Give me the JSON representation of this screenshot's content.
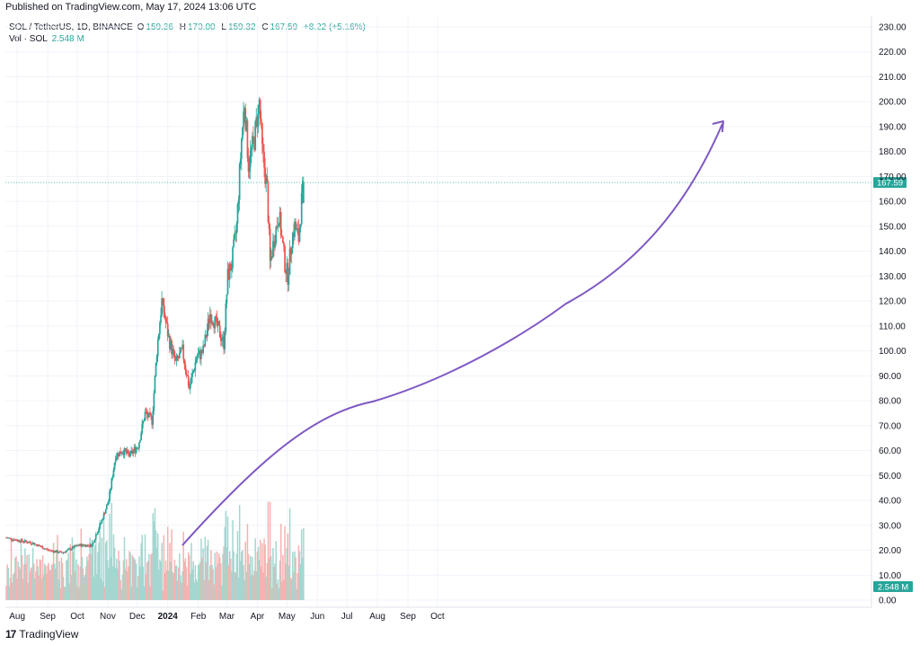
{
  "published": "Published on TradingView.com, May 17, 2024 13:06 UTC",
  "legend": {
    "symbol": "SOL / TetherUS, 1D, BINANCE",
    "o_label": "O",
    "o_value": "159.36",
    "h_label": "H",
    "h_value": "170.00",
    "l_label": "L",
    "l_value": "159.32",
    "c_label": "C",
    "c_value": "167.59",
    "change": "+8.22 (+5.16%)",
    "vol_label": "Vol · SOL",
    "vol_value": "2.548 M"
  },
  "brand": "TradingView",
  "colors": {
    "up": "#26a69a",
    "down": "#ef5350",
    "vol_up": "#a5d6d0",
    "vol_down": "#f4b3b1",
    "arrow": "#7e57c2",
    "grid": "#f0f3fa"
  },
  "chart_data": {
    "type": "candlestick",
    "symbol": "SOL / TetherUS, 1D, BINANCE",
    "x_labels": [
      "Aug",
      "Sep",
      "Oct",
      "Nov",
      "Dec",
      "2024",
      "Feb",
      "Mar",
      "Apr",
      "May",
      "Jun",
      "Jul",
      "Aug",
      "Sep",
      "Oct"
    ],
    "y_ticks": [
      "0.00",
      "10.00",
      "20.00",
      "30.00",
      "40.00",
      "50.00",
      "60.00",
      "70.00",
      "80.00",
      "90.00",
      "100.00",
      "110.00",
      "120.00",
      "130.00",
      "140.00",
      "150.00",
      "160.00",
      "170.00",
      "180.00",
      "190.00",
      "200.00",
      "210.00",
      "220.00",
      "230.00"
    ],
    "ylim": [
      0,
      230
    ],
    "last_price": 167.59,
    "last_price_label": "167.59",
    "last_volume_label": "2.548 M",
    "price_path": [
      {
        "date": "2023-07-20",
        "close": 25
      },
      {
        "date": "2023-08-01",
        "close": 24
      },
      {
        "date": "2023-08-15",
        "close": 23
      },
      {
        "date": "2023-09-01",
        "close": 20
      },
      {
        "date": "2023-09-15",
        "close": 19
      },
      {
        "date": "2023-10-01",
        "close": 22
      },
      {
        "date": "2023-10-15",
        "close": 22
      },
      {
        "date": "2023-10-25",
        "close": 32
      },
      {
        "date": "2023-11-01",
        "close": 40
      },
      {
        "date": "2023-11-08",
        "close": 58
      },
      {
        "date": "2023-11-15",
        "close": 60
      },
      {
        "date": "2023-11-22",
        "close": 58
      },
      {
        "date": "2023-12-01",
        "close": 62
      },
      {
        "date": "2023-12-08",
        "close": 75
      },
      {
        "date": "2023-12-15",
        "close": 72
      },
      {
        "date": "2023-12-20",
        "close": 100
      },
      {
        "date": "2023-12-25",
        "close": 120
      },
      {
        "date": "2024-01-01",
        "close": 105
      },
      {
        "date": "2024-01-08",
        "close": 95
      },
      {
        "date": "2024-01-15",
        "close": 100
      },
      {
        "date": "2024-01-22",
        "close": 85
      },
      {
        "date": "2024-01-29",
        "close": 97
      },
      {
        "date": "2024-02-05",
        "close": 100
      },
      {
        "date": "2024-02-12",
        "close": 115
      },
      {
        "date": "2024-02-19",
        "close": 110
      },
      {
        "date": "2024-02-26",
        "close": 103
      },
      {
        "date": "2024-03-01",
        "close": 130
      },
      {
        "date": "2024-03-05",
        "close": 135
      },
      {
        "date": "2024-03-10",
        "close": 150
      },
      {
        "date": "2024-03-15",
        "close": 185
      },
      {
        "date": "2024-03-18",
        "close": 200
      },
      {
        "date": "2024-03-22",
        "close": 175
      },
      {
        "date": "2024-03-28",
        "close": 185
      },
      {
        "date": "2024-04-02",
        "close": 200
      },
      {
        "date": "2024-04-05",
        "close": 180
      },
      {
        "date": "2024-04-10",
        "close": 165
      },
      {
        "date": "2024-04-13",
        "close": 135
      },
      {
        "date": "2024-04-17",
        "close": 145
      },
      {
        "date": "2024-04-22",
        "close": 155
      },
      {
        "date": "2024-04-28",
        "close": 135
      },
      {
        "date": "2024-05-01",
        "close": 130
      },
      {
        "date": "2024-05-05",
        "close": 145
      },
      {
        "date": "2024-05-08",
        "close": 150
      },
      {
        "date": "2024-05-12",
        "close": 145
      },
      {
        "date": "2024-05-15",
        "close": 160
      },
      {
        "date": "2024-05-17",
        "close": 167.59
      }
    ]
  }
}
